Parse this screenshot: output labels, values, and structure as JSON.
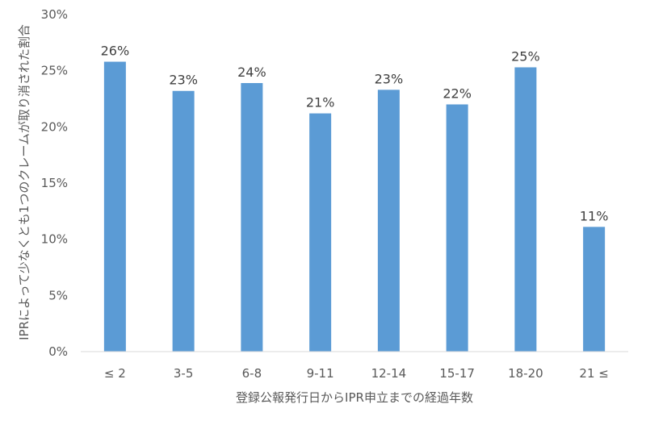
{
  "chart_data": {
    "type": "bar",
    "title": "",
    "xlabel": "登録公報発行日からIPR申立までの経過年数",
    "ylabel": "IPRによって少なくとも1つのクレームが取り消された割合",
    "categories": [
      "≤ 2",
      "3-5",
      "6-8",
      "9-11",
      "12-14",
      "15-17",
      "18-20",
      "21 ≤"
    ],
    "values": [
      25.8,
      23.2,
      23.9,
      21.2,
      23.3,
      22.0,
      25.3,
      11.1
    ],
    "data_labels": [
      "26%",
      "23%",
      "24%",
      "21%",
      "23%",
      "22%",
      "25%",
      "11%"
    ],
    "ylim": [
      0,
      30
    ],
    "yticks": [
      0,
      5,
      10,
      15,
      20,
      25,
      30
    ],
    "ytick_labels": [
      "0%",
      "5%",
      "10%",
      "15%",
      "20%",
      "25%",
      "30%"
    ],
    "grid": false,
    "legend": "none",
    "colors": {
      "bar": "#5B9BD5",
      "axis": "#D9D9D9",
      "text": "#595959"
    }
  }
}
